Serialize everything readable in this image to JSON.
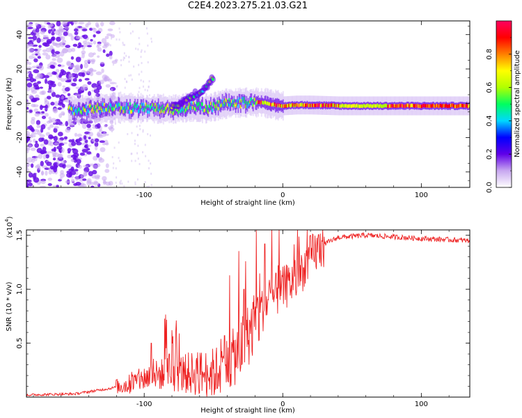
{
  "title": "C2E4.2023.275.21.03.G21",
  "chart_data": [
    {
      "type": "heatmap",
      "xlabel": "Height of straight line (km)",
      "ylabel": "Frequency (Hz)",
      "xlim": [
        -185,
        135
      ],
      "ylim": [
        -49,
        48
      ],
      "xticks": [
        -100,
        0,
        100
      ],
      "yticks": [
        -40,
        -20,
        0,
        20,
        40
      ],
      "colorbar": {
        "label": "Normalized spectral amplitude",
        "range": [
          0,
          1
        ],
        "ticks": [
          "0.0",
          "0.2",
          "0.4",
          "0.6",
          "0.8"
        ],
        "colors": [
          "#ffffff",
          "#c8a8f0",
          "#6000e8",
          "#0000ff",
          "#00d8ff",
          "#00ff60",
          "#b0ff00",
          "#ffff00",
          "#ff8000",
          "#ff0000",
          "#ff0060"
        ]
      },
      "ridge": {
        "x": [
          -150,
          -120,
          -100,
          -80,
          -65,
          -55,
          -40,
          -25,
          -15,
          -5,
          0,
          10,
          20,
          40,
          60,
          80,
          100,
          120,
          135
        ],
        "y": [
          -4,
          -2.5,
          -3,
          -3.5,
          -2,
          -3,
          0,
          0.5,
          0.5,
          -1,
          -1.5,
          -1,
          -1,
          -1.5,
          -1.5,
          -1.5,
          -1.5,
          -1.5,
          -1.5
        ]
      },
      "branch": {
        "x": [
          -80,
          -70,
          -62,
          -55,
          -50
        ],
        "y": [
          -2,
          2,
          6,
          10,
          15
        ]
      }
    },
    {
      "type": "line",
      "xlabel": "Height of straight line (km)",
      "ylabel": "SNR (10 * v/v)",
      "y_multiplier": "(x10",
      "y_multiplier_exp": "4",
      "y_multiplier_close": ")",
      "xlim": [
        -185,
        135
      ],
      "ylim": [
        0,
        1.55
      ],
      "xticks": [
        -100,
        0,
        100
      ],
      "yticks": [
        "0.5",
        "1.0",
        "1.5"
      ],
      "color": "#ee2222",
      "trend": {
        "x": [
          -185,
          -150,
          -125,
          -110,
          -95,
          -80,
          -65,
          -50,
          -40,
          -30,
          -20,
          -10,
          0,
          10,
          20,
          30,
          40,
          60,
          100,
          135
        ],
        "y": [
          0.02,
          0.03,
          0.08,
          0.12,
          0.2,
          0.22,
          0.22,
          0.22,
          0.3,
          0.45,
          0.7,
          0.9,
          1.0,
          1.1,
          1.3,
          1.42,
          1.48,
          1.5,
          1.47,
          1.45
        ]
      },
      "spikes": [
        {
          "x": -120,
          "y": 0.16
        },
        {
          "x": -95,
          "y": 0.5
        },
        {
          "x": -82,
          "y": 0.4
        },
        {
          "x": -42,
          "y": 0.57
        },
        {
          "x": -28,
          "y": 1.0
        },
        {
          "x": -13,
          "y": 1.42
        },
        {
          "x": -5,
          "y": 1.15
        },
        {
          "x": 15,
          "y": 1.2
        }
      ]
    }
  ]
}
